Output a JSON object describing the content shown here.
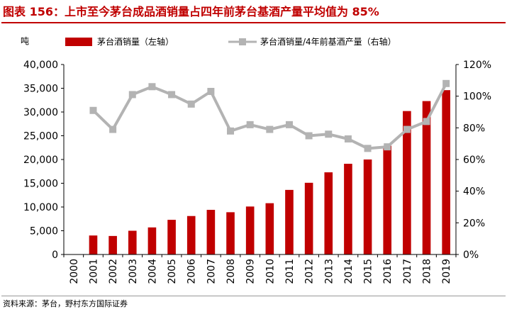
{
  "header": {
    "title": "图表 156：上市至今茅台成品酒销量占四年前茅台基酒产量平均值为 85%"
  },
  "footer": {
    "source": "资料来源：茅台，野村东方国际证券"
  },
  "colors": {
    "title": "#c00000",
    "bar": "#c00000",
    "line": "#b3b3b3",
    "axis": "#000000"
  },
  "chart_data": {
    "type": "bar",
    "categories": [
      "2000",
      "2001",
      "2002",
      "2003",
      "2004",
      "2005",
      "2006",
      "2007",
      "2008",
      "2009",
      "2010",
      "2011",
      "2012",
      "2013",
      "2014",
      "2015",
      "2016",
      "2017",
      "2018",
      "2019"
    ],
    "left_axis": {
      "unit": "吨",
      "ylim": [
        0,
        40000
      ],
      "ticks": [
        "0",
        "5,000",
        "10,000",
        "15,000",
        "20,000",
        "25,000",
        "30,000",
        "35,000",
        "40,000"
      ]
    },
    "right_axis": {
      "ylim": [
        0,
        120
      ],
      "ticks": [
        "0%",
        "20%",
        "40%",
        "60%",
        "80%",
        "100%",
        "120%"
      ]
    },
    "series": [
      {
        "name": "茅台酒销量（左轴）",
        "type": "bar",
        "axis": "left",
        "values": [
          null,
          4000,
          3900,
          5000,
          5700,
          7300,
          8100,
          9400,
          8900,
          10100,
          10800,
          13600,
          15100,
          17300,
          19100,
          20000,
          22900,
          30200,
          32300,
          34600
        ]
      },
      {
        "name": "茅台酒销量/4年前基酒产量（右轴）",
        "type": "line",
        "axis": "right",
        "values": [
          null,
          91,
          79,
          101,
          106,
          101,
          95,
          103,
          78,
          82,
          79,
          82,
          75,
          76,
          73,
          67,
          68,
          79,
          84,
          108
        ]
      }
    ],
    "legend_position": "top",
    "grid": false
  }
}
